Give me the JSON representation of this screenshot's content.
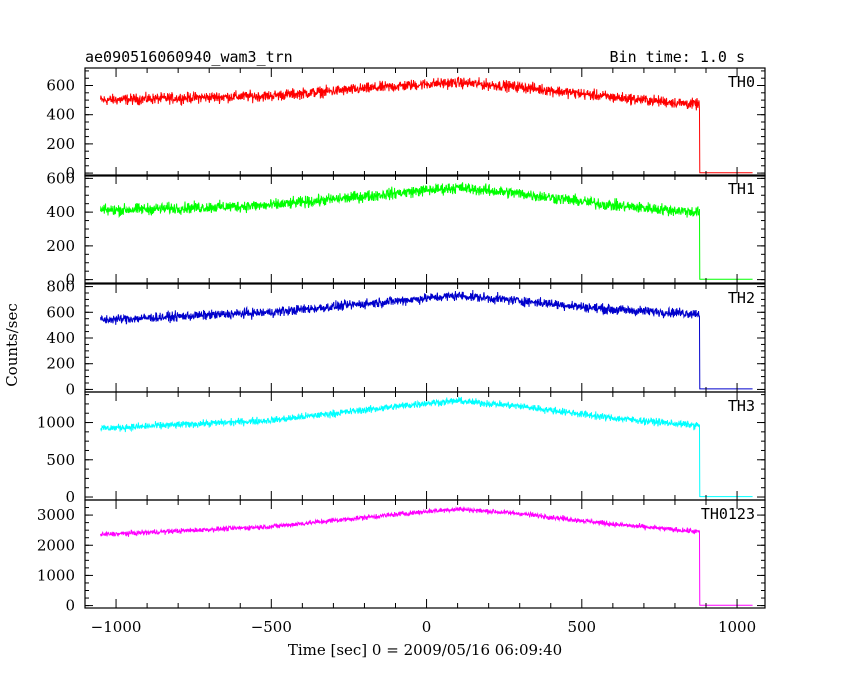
{
  "header": {
    "title": "ae090516060940_wam3_trn",
    "bin_time": "Bin time: 1.0 s"
  },
  "axes": {
    "ylabel": "Counts/sec",
    "xlabel": "Time [sec] 0 = 2009/05/16 06:09:40",
    "xlim": [
      -1100,
      1090
    ],
    "xticks": [
      -1000,
      -500,
      0,
      500,
      1000
    ],
    "xtick_labels": [
      "−1000",
      "−500",
      "0",
      "500",
      "1000"
    ]
  },
  "chart_data": {
    "type": "line",
    "title": "ae090516060940_wam3_trn",
    "xlabel": "Time [sec] 0 = 2009/05/16 06:09:40",
    "ylabel": "Counts/sec",
    "x_range": [
      -1050,
      1050
    ],
    "step_off_time": 880,
    "panels": [
      {
        "name": "TH0",
        "color": "#ff0000",
        "ylim": [
          -20,
          720
        ],
        "yticks": [
          0,
          200,
          400,
          600
        ],
        "profile": {
          "x": [
            -1050,
            -500,
            0,
            100,
            300,
            600,
            870
          ],
          "y": [
            500,
            530,
            610,
            620,
            590,
            520,
            470
          ]
        },
        "noise": 55,
        "after_step": 2
      },
      {
        "name": "TH1",
        "color": "#00ff00",
        "ylim": [
          -20,
          620
        ],
        "yticks": [
          0,
          200,
          400,
          600
        ],
        "profile": {
          "x": [
            -1050,
            -500,
            0,
            100,
            300,
            600,
            870
          ],
          "y": [
            410,
            440,
            530,
            545,
            510,
            440,
            400
          ]
        },
        "noise": 50,
        "after_step": 2
      },
      {
        "name": "TH2",
        "color": "#0000cc",
        "ylim": [
          -20,
          820
        ],
        "yticks": [
          0,
          200,
          400,
          600,
          800
        ],
        "profile": {
          "x": [
            -1050,
            -500,
            0,
            100,
            300,
            600,
            870
          ],
          "y": [
            540,
            600,
            710,
            730,
            690,
            620,
            590
          ]
        },
        "noise": 55,
        "after_step": 4
      },
      {
        "name": "TH3",
        "color": "#00ffff",
        "ylim": [
          -40,
          1410
        ],
        "yticks": [
          0,
          500,
          1000
        ],
        "profile": {
          "x": [
            -1050,
            -500,
            0,
            100,
            300,
            600,
            870
          ],
          "y": [
            920,
            1030,
            1260,
            1290,
            1220,
            1060,
            960
          ]
        },
        "noise": 70,
        "after_step": 5
      },
      {
        "name": "TH0123",
        "color": "#ff00ff",
        "ylim": [
          -80,
          3500
        ],
        "yticks": [
          0,
          1000,
          2000,
          3000
        ],
        "profile": {
          "x": [
            -1050,
            -500,
            0,
            100,
            300,
            600,
            870
          ],
          "y": [
            2350,
            2620,
            3120,
            3200,
            3050,
            2700,
            2450
          ]
        },
        "noise": 120,
        "after_step": 10
      }
    ]
  }
}
